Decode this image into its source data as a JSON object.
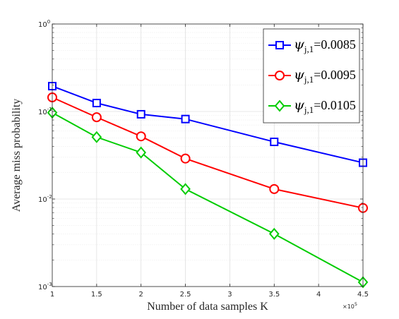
{
  "chart_data": {
    "type": "line",
    "title": "",
    "xlabel": "Number of data samples K",
    "ylabel": "Average miss probability",
    "x_multiplier_label": "×10",
    "x_multiplier_exp": "5",
    "x": [
      1,
      1.5,
      2,
      2.5,
      3.5,
      4.5
    ],
    "xlim": [
      1,
      4.5
    ],
    "xticks": [
      "1",
      "1.5",
      "2",
      "2.5",
      "3",
      "3.5",
      "4",
      "4.5"
    ],
    "ylim": [
      0.001,
      1
    ],
    "yscale": "log",
    "yticks": [
      {
        "base": "10",
        "exp": "0"
      },
      {
        "base": "10",
        "exp": "-1"
      },
      {
        "base": "10",
        "exp": "-2"
      },
      {
        "base": "10",
        "exp": "-3"
      }
    ],
    "grid": true,
    "legend_position": "top-right",
    "series": [
      {
        "name": "ψ_{j,1}=0.0085",
        "sym": "ψ",
        "sub": "j,1",
        "val": "=0.0085",
        "color": "#0000ff",
        "marker": "square",
        "values": [
          0.195,
          0.125,
          0.093,
          0.082,
          0.045,
          0.026
        ]
      },
      {
        "name": "ψ_{j,1}=0.0095",
        "sym": "ψ",
        "sub": "j,1",
        "val": "=0.0095",
        "color": "#ff0000",
        "marker": "circle",
        "values": [
          0.145,
          0.086,
          0.052,
          0.029,
          0.013,
          0.0079
        ]
      },
      {
        "name": "ψ_{j,1}=0.0105",
        "sym": "ψ",
        "sub": "j,1",
        "val": "=0.0105",
        "color": "#00cc00",
        "marker": "diamond",
        "values": [
          0.097,
          0.051,
          0.034,
          0.013,
          0.004,
          0.00112
        ]
      }
    ]
  }
}
